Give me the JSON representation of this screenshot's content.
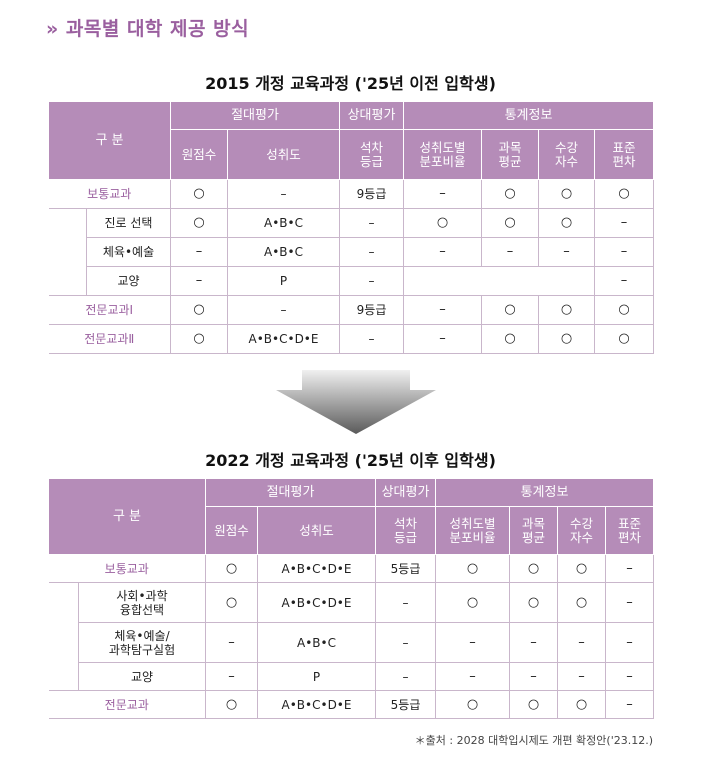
{
  "heading": "» 과목별 대학 제공 방식",
  "table2015": {
    "title": "2015 개정 교육과정 ('25년 이전 입학생)",
    "header": {
      "category": "구 분",
      "absolute": "절대평가",
      "relative": "상대평가",
      "stats": "통계정보",
      "raw": "원점수",
      "achievement": "성취도",
      "rank": "석차\n등급",
      "dist": "성취도별\n분포비율",
      "avg": "과목\n평균",
      "count": "수강\n자수",
      "sd": "표준\n편차"
    },
    "rows": [
      {
        "label": "보통교과",
        "raw": "○",
        "ach": "–",
        "rank": "9등급",
        "dist": "–",
        "avg": "○",
        "count": "○",
        "sd": "○"
      },
      {
        "label": "진로 선택",
        "raw": "○",
        "ach": "A•B•C",
        "rank": "–",
        "dist": "○",
        "avg": "○",
        "count": "○",
        "sd": "–"
      },
      {
        "label": "체육•예술",
        "raw": "–",
        "ach": "A•B•C",
        "rank": "–",
        "dist": "–",
        "avg": "–",
        "count": "–",
        "sd": "–"
      },
      {
        "label": "교양",
        "raw": "–",
        "ach": "P",
        "rank": "–",
        "dist": "",
        "avg": "",
        "count": "",
        "sd": "–"
      },
      {
        "label": "전문교과Ⅰ",
        "raw": "○",
        "ach": "–",
        "rank": "9등급",
        "dist": "–",
        "avg": "○",
        "count": "○",
        "sd": "○"
      },
      {
        "label": "전문교과Ⅱ",
        "raw": "○",
        "ach": "A•B•C•D•E",
        "rank": "–",
        "dist": "–",
        "avg": "○",
        "count": "○",
        "sd": "○"
      }
    ]
  },
  "table2022": {
    "title": "2022 개정 교육과정 ('25년 이후 입학생)",
    "header": {
      "category": "구 분",
      "absolute": "절대평가",
      "relative": "상대평가",
      "stats": "통계정보",
      "raw": "원점수",
      "achievement": "성취도",
      "rank": "석차\n등급",
      "dist": "성취도별\n분포비율",
      "avg": "과목\n평균",
      "count": "수강\n자수",
      "sd": "표준\n편차"
    },
    "rows": [
      {
        "label": "보통교과",
        "raw": "○",
        "ach": "A•B•C•D•E",
        "rank": "5등급",
        "dist": "○",
        "avg": "○",
        "count": "○",
        "sd": "–"
      },
      {
        "label": "사회•과학\n융합선택",
        "raw": "○",
        "ach": "A•B•C•D•E",
        "rank": "–",
        "dist": "○",
        "avg": "○",
        "count": "○",
        "sd": "–"
      },
      {
        "label": "체육•예술/\n과학탐구실험",
        "raw": "–",
        "ach": "A•B•C",
        "rank": "–",
        "dist": "–",
        "avg": "–",
        "count": "–",
        "sd": "–"
      },
      {
        "label": "교양",
        "raw": "–",
        "ach": "P",
        "rank": "–",
        "dist": "–",
        "avg": "–",
        "count": "–",
        "sd": "–"
      },
      {
        "label": "전문교과",
        "raw": "○",
        "ach": "A•B•C•D•E",
        "rank": "5등급",
        "dist": "○",
        "avg": "○",
        "count": "○",
        "sd": "–"
      }
    ]
  },
  "source": "＊출처 : 2028 대학입시제도 개편 확정안('23.12.)"
}
